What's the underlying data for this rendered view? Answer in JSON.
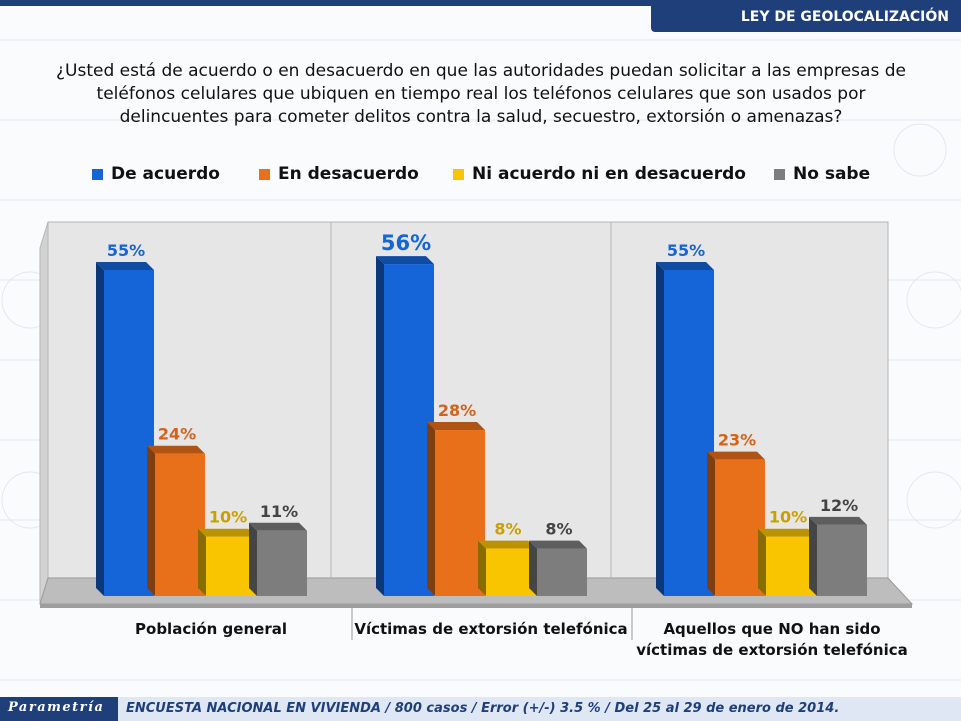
{
  "header": {
    "tag": "LEY DE GEOLOCALIZACIÓN"
  },
  "question": {
    "line1": "¿Usted está de acuerdo o en desacuerdo en que las autoridades puedan solicitar a las empresas de",
    "line2": "teléfonos celulares que ubiquen en tiempo real los teléfonos celulares que son usados por",
    "line3": "delincuentes para cometer delitos contra la salud, secuestro, extorsión o amenazas?"
  },
  "footer": {
    "brand": "Parametría",
    "text": "ENCUESTA NACIONAL EN VIVIENDA / 800 casos / Error (+/-) 3.5 % / Del 25 al 29 de enero de 2014."
  },
  "chart_data": {
    "type": "bar",
    "legend_position": "top",
    "ylim": [
      0,
      60
    ],
    "grid": false,
    "categories": [
      [
        "Población general"
      ],
      [
        "Víctimas de extorsión telefónica"
      ],
      [
        "Aquellos que NO han sido",
        "víctimas de extorsión telefónica"
      ]
    ],
    "series": [
      {
        "name": "De acuerdo",
        "values": [
          55,
          56,
          55
        ],
        "labels": [
          "55%",
          "56%",
          "55%"
        ],
        "color": "#1565d8"
      },
      {
        "name": "En desacuerdo",
        "values": [
          24,
          28,
          23
        ],
        "labels": [
          "24%",
          "28%",
          "23%"
        ],
        "color": "#e8701a"
      },
      {
        "name": "Ni acuerdo ni en desacuerdo",
        "values": [
          10,
          8,
          10
        ],
        "labels": [
          "10%",
          "8%",
          "10%"
        ],
        "color": "#f9c400"
      },
      {
        "name": "No sabe",
        "values": [
          11,
          8,
          12
        ],
        "labels": [
          "11%",
          "8%",
          "12%"
        ],
        "color": "#7d7d7d"
      }
    ],
    "label_colors": [
      "#1565d8",
      "#d4621a",
      "#c9a000",
      "#444444"
    ]
  }
}
